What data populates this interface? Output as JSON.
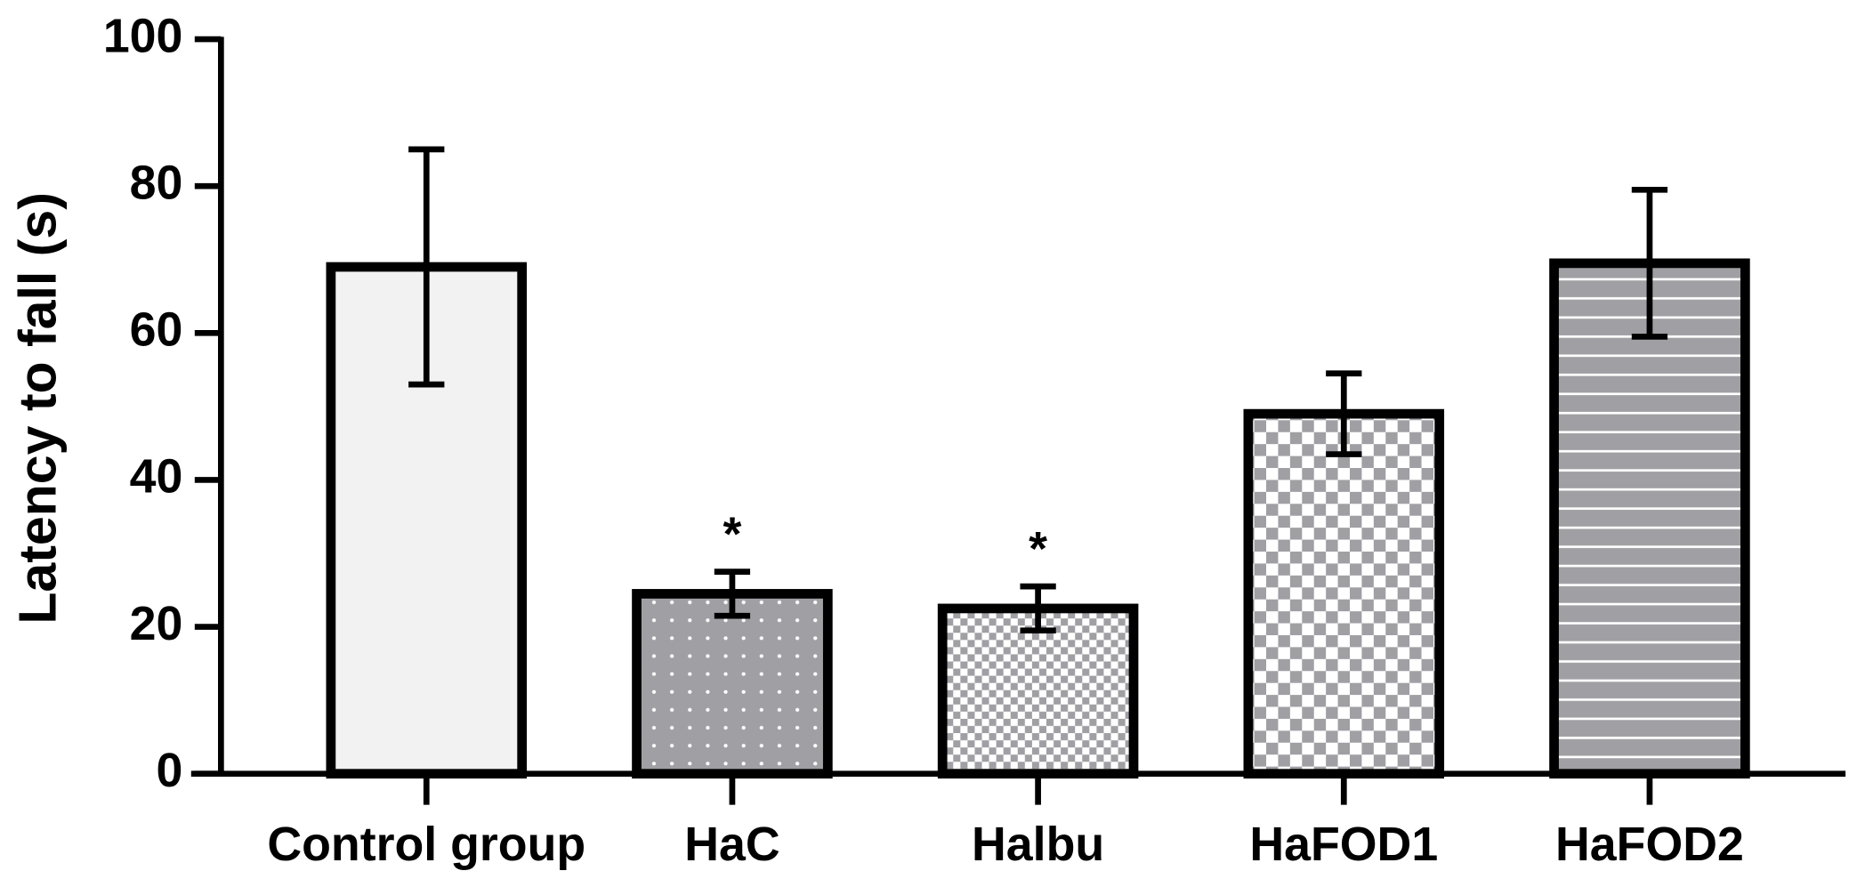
{
  "chart_data": {
    "type": "bar",
    "y_label": "Latency to fall (s)",
    "categories": [
      "Control group",
      "HaC",
      "Halbu",
      "HaFOD1",
      "HaFOD2"
    ],
    "values": [
      69,
      24.5,
      22.5,
      49,
      69.5
    ],
    "errors": [
      16,
      3,
      3,
      5.5,
      10
    ],
    "annotations": [
      null,
      "*",
      "*",
      null,
      null
    ],
    "colors": [
      "#f2f2f2",
      "#a09fa4",
      "#a09fa4",
      "#a09fa4",
      "#a09fa4"
    ],
    "patterns": [
      "solid",
      "dots",
      "fine-checker",
      "checker",
      "stripes"
    ],
    "ylim": [
      0,
      100
    ],
    "yticks": [
      0,
      20,
      40,
      60,
      80,
      100
    ],
    "grid": false
  }
}
